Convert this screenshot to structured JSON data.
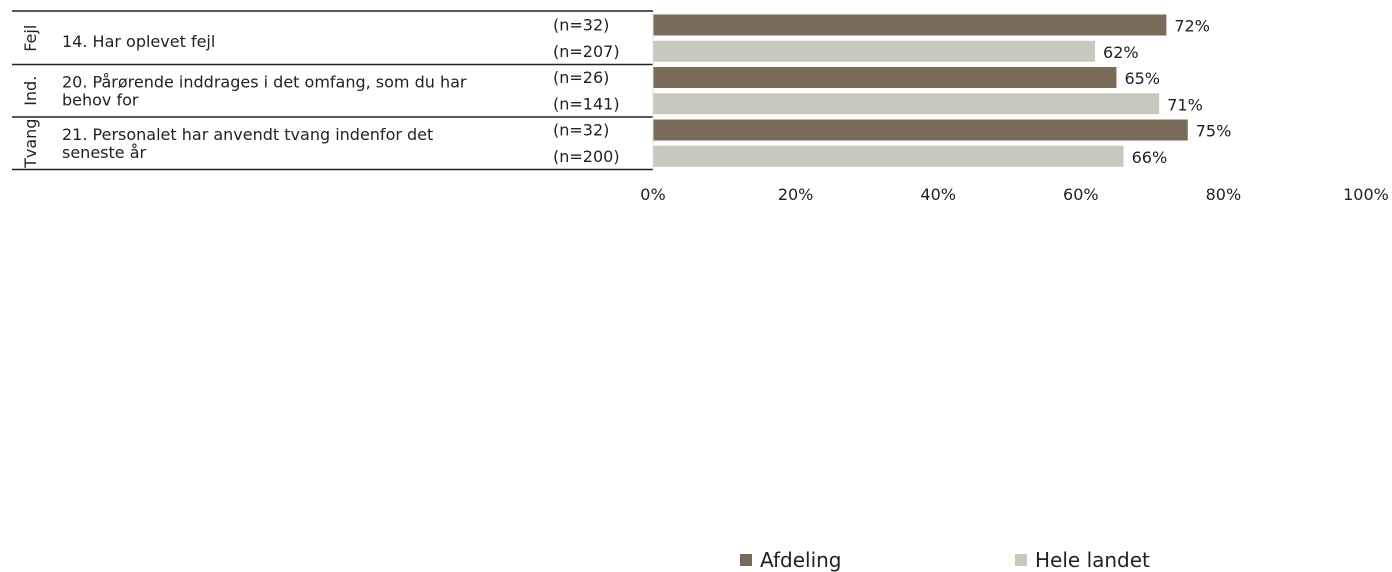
{
  "chart_data": {
    "type": "bar",
    "orientation": "horizontal",
    "groups": [
      {
        "section": "Fejl",
        "question": "14. Har oplevet fejl",
        "rows": [
          {
            "series": "Afdeling",
            "n": "(n=32)",
            "value": 72,
            "label": "72%"
          },
          {
            "series": "Hele landet",
            "n": "(n=207)",
            "value": 62,
            "label": "62%"
          }
        ]
      },
      {
        "section": "Ind.",
        "question": "20. Pårørende inddrages i det omfang, som du har behov for",
        "rows": [
          {
            "series": "Afdeling",
            "n": "(n=26)",
            "value": 65,
            "label": "65%"
          },
          {
            "series": "Hele landet",
            "n": "(n=141)",
            "value": 71,
            "label": "71%"
          }
        ]
      },
      {
        "section": "Tvang",
        "question": "21. Personalet har anvendt tvang indenfor det seneste år",
        "rows": [
          {
            "series": "Afdeling",
            "n": "(n=32)",
            "value": 75,
            "label": "75%"
          },
          {
            "series": "Hele landet",
            "n": "(n=200)",
            "value": 66,
            "label": "66%"
          }
        ]
      }
    ],
    "xlim": [
      0,
      100
    ],
    "xticks": [
      "0%",
      "20%",
      "40%",
      "60%",
      "80%",
      "100%"
    ],
    "legend": {
      "position": "bottom",
      "items": [
        {
          "name": "Afdeling",
          "color": "#786b59"
        },
        {
          "name": "Hele landet",
          "color": "#c8c8bc"
        }
      ]
    }
  }
}
